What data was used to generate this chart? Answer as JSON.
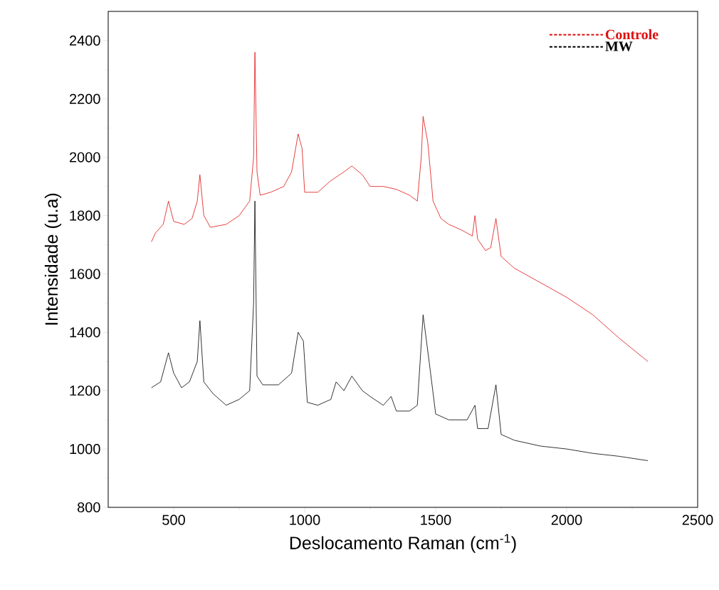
{
  "chart_data": {
    "type": "line",
    "xlabel": "Deslocamento Raman (cm$^{-1}$)",
    "ylabel": "Intensidade (u.a)",
    "xlim": [
      250,
      2500
    ],
    "ylim": [
      800,
      2500
    ],
    "xticks": [
      500,
      1000,
      1500,
      2000,
      2500
    ],
    "yticks": [
      800,
      1000,
      1200,
      1400,
      1600,
      1800,
      2000,
      2200,
      2400
    ],
    "legend": "top right",
    "marker": "none",
    "line_style": "solid",
    "series": [
      {
        "name": "Controle",
        "color": "#e01010",
        "x": [
          415,
          430,
          460,
          480,
          500,
          540,
          570,
          590,
          600,
          615,
          640,
          700,
          750,
          790,
          805,
          810,
          818,
          830,
          870,
          920,
          950,
          975,
          990,
          1000,
          1050,
          1100,
          1150,
          1180,
          1220,
          1250,
          1300,
          1350,
          1400,
          1430,
          1445,
          1452,
          1470,
          1490,
          1520,
          1550,
          1600,
          1640,
          1650,
          1660,
          1690,
          1710,
          1730,
          1750,
          1800,
          1900,
          2000,
          2100,
          2200,
          2310
        ],
        "values": [
          1710,
          1740,
          1770,
          1850,
          1780,
          1770,
          1790,
          1850,
          1940,
          1800,
          1760,
          1770,
          1800,
          1850,
          2000,
          2360,
          1950,
          1870,
          1880,
          1900,
          1950,
          2080,
          2030,
          1880,
          1880,
          1920,
          1950,
          1970,
          1940,
          1900,
          1900,
          1890,
          1870,
          1850,
          2000,
          2140,
          2050,
          1850,
          1790,
          1770,
          1750,
          1730,
          1800,
          1720,
          1680,
          1690,
          1790,
          1660,
          1620,
          1570,
          1520,
          1460,
          1380,
          1300
        ]
      },
      {
        "name": "MW",
        "color": "#000000",
        "x": [
          415,
          450,
          480,
          500,
          530,
          560,
          590,
          600,
          615,
          650,
          700,
          750,
          790,
          805,
          810,
          818,
          840,
          900,
          950,
          975,
          995,
          1010,
          1050,
          1100,
          1120,
          1150,
          1180,
          1220,
          1250,
          1300,
          1330,
          1350,
          1400,
          1430,
          1452,
          1475,
          1500,
          1550,
          1620,
          1650,
          1660,
          1700,
          1730,
          1750,
          1800,
          1900,
          2000,
          2100,
          2200,
          2310
        ],
        "values": [
          1210,
          1230,
          1330,
          1260,
          1210,
          1230,
          1300,
          1440,
          1230,
          1190,
          1150,
          1170,
          1200,
          1500,
          1850,
          1250,
          1220,
          1220,
          1260,
          1400,
          1370,
          1160,
          1150,
          1170,
          1230,
          1200,
          1250,
          1200,
          1180,
          1150,
          1180,
          1130,
          1130,
          1150,
          1460,
          1300,
          1120,
          1100,
          1100,
          1150,
          1070,
          1070,
          1220,
          1050,
          1030,
          1010,
          1000,
          985,
          975,
          960
        ]
      }
    ]
  }
}
